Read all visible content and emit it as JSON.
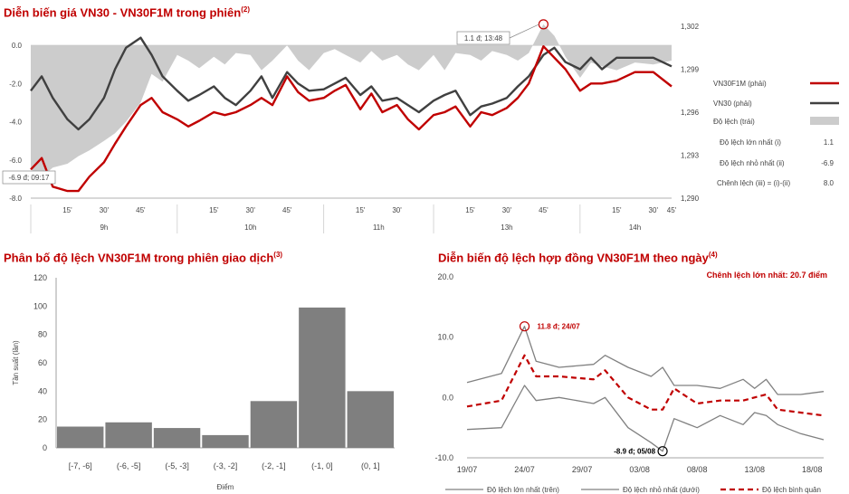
{
  "chart_data": [
    {
      "type": "line",
      "title": "Diễn biến giá VN30 - VN30F1M trong phiên",
      "title_note": "(2)",
      "y_left": {
        "ticks": [
          "0.0",
          "-2.0",
          "-4.0",
          "-6.0",
          "-8.0"
        ],
        "ylim": [
          -8,
          1
        ]
      },
      "y_right": {
        "ticks": [
          "1,302",
          "1,299",
          "1,296",
          "1,293",
          "1,290"
        ],
        "ylim": [
          1290,
          1302
        ]
      },
      "x_ticks": [
        "15'",
        "30'",
        "45'",
        "15'",
        "30'",
        "45'",
        "15'",
        "30'",
        "15'",
        "30'",
        "45'",
        "15'",
        "30'",
        "45'"
      ],
      "hour_labels": [
        "9h",
        "10h",
        "11h",
        "13h",
        "14h"
      ],
      "legend": [
        {
          "name": "VN30F1M (phải)",
          "color": "#c00000",
          "kind": "line"
        },
        {
          "name": "VN30 (phải)",
          "color": "#404040",
          "kind": "line"
        },
        {
          "name": "Độ lệch (trái)",
          "color": "#cccccc",
          "kind": "area"
        }
      ],
      "stats": [
        {
          "label": "Độ lệch lớn nhất (i)",
          "value": "1.1"
        },
        {
          "label": "Độ lệch nhỏ nhất (ii)",
          "value": "-6.9"
        },
        {
          "label": "Chênh lệch (iii) = (i)-(ii)",
          "value": "8.0"
        }
      ],
      "annotations": [
        {
          "text": "1.1 đ; 13:48",
          "x": 14.0,
          "y": 1.1
        },
        {
          "text": "-6.9 đ; 09:17",
          "x": 0.3,
          "y": -6.9
        }
      ],
      "series": [
        {
          "name": "Độ lệch",
          "x": [
            0,
            0.3,
            0.6,
            1,
            1.3,
            1.6,
            2,
            2.3,
            2.6,
            3,
            3.3,
            3.6,
            4,
            4.3,
            4.6,
            5,
            5.3,
            5.6,
            6,
            6.3,
            6.6,
            7,
            7.3,
            7.6,
            8,
            8.3,
            8.6,
            9,
            9.3,
            9.6,
            10,
            10.3,
            10.6,
            11,
            11.3,
            11.6,
            12,
            12.3,
            12.6,
            13,
            13.3,
            13.6,
            14,
            14.3,
            14.6,
            15,
            15.3,
            15.6,
            16,
            16.5,
            17,
            17.5
          ],
          "values": [
            -6.5,
            -6.9,
            -6.4,
            -6.2,
            -5.8,
            -5.5,
            -5.0,
            -4.6,
            -4.0,
            -3.0,
            -1.5,
            -1.9,
            -0.5,
            -0.8,
            -1.2,
            -0.6,
            -1.0,
            -0.4,
            -0.5,
            -1.3,
            -0.8,
            0.0,
            -0.8,
            -1.3,
            -0.4,
            -0.2,
            -0.5,
            -0.9,
            -0.3,
            -0.8,
            -0.5,
            -1.0,
            -1.3,
            -0.5,
            -1.3,
            -0.4,
            -0.5,
            -0.8,
            -0.3,
            -0.5,
            -0.8,
            -0.4,
            1.1,
            0.5,
            -0.6,
            -1.7,
            -0.9,
            -1.1,
            -1.3,
            -0.9,
            -1.0,
            -0.8
          ]
        },
        {
          "name": "VN30",
          "x": [
            0,
            0.3,
            0.6,
            1,
            1.3,
            1.6,
            2,
            2.3,
            2.6,
            3,
            3.3,
            3.6,
            4,
            4.3,
            4.6,
            5,
            5.3,
            5.6,
            6,
            6.3,
            6.6,
            7,
            7.3,
            7.6,
            8,
            8.3,
            8.6,
            9,
            9.3,
            9.6,
            10,
            10.3,
            10.6,
            11,
            11.3,
            11.6,
            12,
            12.3,
            12.6,
            13,
            13.3,
            13.6,
            14,
            14.3,
            14.6,
            15,
            15.3,
            15.6,
            16,
            16.5,
            17,
            17.5
          ],
          "values": [
            1297.5,
            1298.5,
            1297.0,
            1295.5,
            1294.8,
            1295.5,
            1297.0,
            1299.0,
            1300.5,
            1301.2,
            1300.0,
            1298.5,
            1297.5,
            1296.8,
            1297.2,
            1297.8,
            1297.0,
            1296.5,
            1297.5,
            1298.5,
            1297.0,
            1298.8,
            1298.0,
            1297.5,
            1297.6,
            1298.0,
            1298.4,
            1297.2,
            1297.8,
            1296.8,
            1297.0,
            1296.5,
            1296.0,
            1296.8,
            1297.2,
            1297.5,
            1295.8,
            1296.4,
            1296.6,
            1297.0,
            1297.8,
            1298.5,
            1300.0,
            1300.5,
            1299.5,
            1299.0,
            1299.8,
            1299.0,
            1299.8,
            1299.8,
            1299.8,
            1299.2
          ]
        },
        {
          "name": "VN30F1M",
          "x": [
            0,
            0.3,
            0.6,
            1,
            1.3,
            1.6,
            2,
            2.3,
            2.6,
            3,
            3.3,
            3.6,
            4,
            4.3,
            4.6,
            5,
            5.3,
            5.6,
            6,
            6.3,
            6.6,
            7,
            7.3,
            7.6,
            8,
            8.3,
            8.6,
            9,
            9.3,
            9.6,
            10,
            10.3,
            10.6,
            11,
            11.3,
            11.6,
            12,
            12.3,
            12.6,
            13,
            13.3,
            13.6,
            14,
            14.3,
            14.6,
            15,
            15.3,
            15.6,
            16,
            16.5,
            17,
            17.5
          ],
          "values": [
            1292.0,
            1292.8,
            1290.8,
            1290.5,
            1290.5,
            1291.5,
            1292.5,
            1293.8,
            1295.0,
            1296.5,
            1297.0,
            1296.0,
            1295.5,
            1295.0,
            1295.4,
            1296.0,
            1295.8,
            1296.0,
            1296.5,
            1297.0,
            1296.5,
            1298.5,
            1297.4,
            1296.8,
            1297.0,
            1297.5,
            1297.9,
            1296.2,
            1297.3,
            1296.0,
            1296.5,
            1295.5,
            1294.8,
            1295.8,
            1296.0,
            1296.4,
            1295.0,
            1296.0,
            1295.8,
            1296.3,
            1297.0,
            1298.0,
            1300.6,
            1299.8,
            1299.0,
            1297.5,
            1298.0,
            1298.0,
            1298.2,
            1298.8,
            1298.8,
            1297.8
          ]
        }
      ]
    },
    {
      "type": "bar",
      "title": "Phân bố độ lệch VN30F1M trong phiên giao dịch",
      "title_note": "(3)",
      "categories": [
        "[-7, -6]",
        "(-6, -5]",
        "(-5, -3]",
        "(-3, -2]",
        "(-2, -1]",
        "(-1, 0]",
        "(0, 1]"
      ],
      "values": [
        15,
        18,
        14,
        9,
        33,
        99,
        40
      ],
      "xlabel": "Điểm",
      "ylabel": "Tần suất (lần)",
      "y_ticks": [
        "0",
        "20",
        "40",
        "60",
        "80",
        "100",
        "120"
      ],
      "ylim": [
        0,
        120
      ]
    },
    {
      "type": "line",
      "title": "Diễn biến độ lệch hợp đồng VN30F1M theo ngày",
      "title_note": "(4)",
      "subtitle": "Chênh lệch lớn nhất: 20.7 điểm",
      "y_ticks": [
        "20.0",
        "10.0",
        "0.0",
        "-10.0"
      ],
      "ylim": [
        -10,
        20
      ],
      "x_ticks": [
        "19/07",
        "24/07",
        "29/07",
        "03/08",
        "08/08",
        "13/08",
        "18/08"
      ],
      "annotations": [
        {
          "text": "11.8 đ; 24/07",
          "x": 5,
          "y": 11.8
        },
        {
          "text": "-8.9 đ; 05/08",
          "x": 17,
          "y": -8.9
        }
      ],
      "legend": [
        "Độ lệch lớn nhất (trên)",
        "Độ lệch nhỏ nhất (dưới)",
        "Độ lệch bình quân"
      ],
      "series": [
        {
          "name": "Độ lệch lớn nhất (trên)",
          "color": "#808080",
          "dash": false,
          "x": [
            0,
            3,
            5,
            6,
            8,
            11,
            12,
            14,
            16,
            17,
            18,
            20,
            22,
            24,
            25,
            26,
            27,
            29,
            31
          ],
          "values": [
            2.5,
            4.0,
            11.8,
            6.0,
            5.0,
            5.5,
            7.0,
            5.0,
            3.5,
            5.0,
            2.0,
            2.0,
            1.5,
            3.0,
            1.5,
            3.0,
            0.5,
            0.5,
            1.0
          ]
        },
        {
          "name": "Độ lệch nhỏ nhất (dưới)",
          "color": "#808080",
          "dash": false,
          "x": [
            0,
            3,
            5,
            6,
            8,
            11,
            12,
            14,
            16,
            17,
            18,
            20,
            22,
            24,
            25,
            26,
            27,
            29,
            31
          ],
          "values": [
            -5.3,
            -5.0,
            2.0,
            -0.5,
            0.0,
            -1.0,
            0.0,
            -5.0,
            -7.5,
            -8.9,
            -3.5,
            -5.0,
            -3.0,
            -4.5,
            -2.5,
            -3.0,
            -4.5,
            -6.0,
            -7.0
          ]
        },
        {
          "name": "Độ lệch bình quân",
          "color": "#c00000",
          "dash": true,
          "x": [
            0,
            3,
            5,
            6,
            8,
            11,
            12,
            14,
            16,
            17,
            18,
            20,
            22,
            24,
            25,
            26,
            27,
            29,
            31
          ],
          "values": [
            -1.5,
            -0.5,
            7.0,
            3.5,
            3.5,
            3.0,
            4.5,
            0.0,
            -2.0,
            -2.0,
            1.5,
            -1.0,
            -0.5,
            -0.5,
            0.0,
            0.5,
            -2.0,
            -2.5,
            -3.0
          ]
        }
      ]
    }
  ]
}
